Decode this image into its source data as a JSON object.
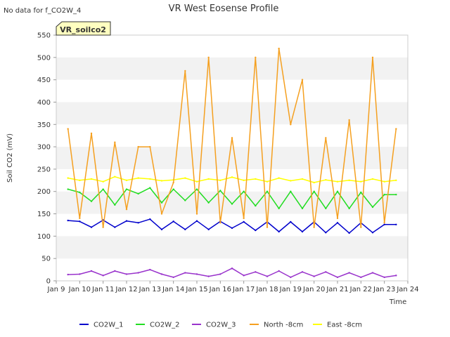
{
  "header": {
    "nodata_text": "No data for f_CO2W_4",
    "badge_text": "VR_soilco2"
  },
  "chart_data": {
    "type": "line",
    "title": "VR West Eosense Profile",
    "xlabel": "Time",
    "ylabel": "Soil CO2 (mV)",
    "xlim": [
      "2024-01-09",
      "2024-01-24"
    ],
    "ylim": [
      0,
      550
    ],
    "x_ticks": [
      "Jan 9",
      "Jan 10",
      "Jan 11",
      "Jan 12",
      "Jan 13",
      "Jan 14",
      "Jan 15",
      "Jan 16",
      "Jan 17",
      "Jan 18",
      "Jan 19",
      "Jan 20",
      "Jan 21",
      "Jan 22",
      "Jan 23",
      "Jan 24"
    ],
    "y_ticks": [
      0,
      50,
      100,
      150,
      200,
      250,
      300,
      350,
      400,
      450,
      500,
      550
    ],
    "grid": "horizontal alternating bands",
    "legend_position": "bottom",
    "colors": {
      "CO2W_1": "#0000cc",
      "CO2W_2": "#22dd22",
      "CO2W_3": "#9933cc",
      "North -8cm": "#f5a020",
      "East -8cm": "#ffff00",
      "band": "#f2f2f2",
      "badge_bg": "#ffffc0",
      "badge_text": "#990000"
    },
    "x": [
      "2024-01-09 12:00",
      "2024-01-10 00:00",
      "2024-01-10 12:00",
      "2024-01-11 00:00",
      "2024-01-11 12:00",
      "2024-01-12 00:00",
      "2024-01-12 12:00",
      "2024-01-13 00:00",
      "2024-01-13 12:00",
      "2024-01-14 00:00",
      "2024-01-14 12:00",
      "2024-01-15 00:00",
      "2024-01-15 12:00",
      "2024-01-16 00:00",
      "2024-01-16 12:00",
      "2024-01-17 00:00",
      "2024-01-17 12:00",
      "2024-01-18 00:00",
      "2024-01-18 12:00",
      "2024-01-19 00:00",
      "2024-01-19 12:00",
      "2024-01-20 00:00",
      "2024-01-20 12:00",
      "2024-01-21 00:00",
      "2024-01-21 12:00",
      "2024-01-22 00:00",
      "2024-01-22 12:00",
      "2024-01-23 00:00",
      "2024-01-23 12:00"
    ],
    "series": [
      {
        "name": "CO2W_1",
        "values": [
          135,
          133,
          120,
          136,
          120,
          134,
          130,
          138,
          115,
          133,
          115,
          134,
          115,
          133,
          118,
          132,
          113,
          132,
          110,
          132,
          110,
          132,
          108,
          130,
          107,
          130,
          108,
          126,
          126
        ]
      },
      {
        "name": "CO2W_2",
        "values": [
          205,
          198,
          178,
          205,
          170,
          205,
          195,
          208,
          175,
          205,
          180,
          205,
          175,
          202,
          172,
          200,
          168,
          200,
          162,
          200,
          162,
          200,
          162,
          200,
          162,
          198,
          165,
          193,
          193
        ]
      },
      {
        "name": "CO2W_3",
        "values": [
          14,
          15,
          22,
          12,
          22,
          15,
          18,
          25,
          15,
          8,
          18,
          15,
          10,
          15,
          28,
          12,
          20,
          10,
          22,
          8,
          20,
          10,
          20,
          8,
          18,
          8,
          18,
          8,
          12
        ]
      },
      {
        "name": "North -8cm",
        "values": [
          340,
          140,
          330,
          120,
          310,
          160,
          300,
          300,
          150,
          220,
          470,
          150,
          500,
          130,
          320,
          140,
          500,
          120,
          520,
          350,
          450,
          120,
          320,
          140,
          360,
          120,
          500,
          130,
          340
        ]
      },
      {
        "name": "East -8cm",
        "values": [
          230,
          225,
          228,
          222,
          233,
          225,
          230,
          228,
          224,
          226,
          230,
          222,
          228,
          225,
          232,
          225,
          228,
          222,
          230,
          224,
          228,
          220,
          226,
          222,
          225,
          222,
          228,
          222,
          225
        ]
      }
    ]
  }
}
